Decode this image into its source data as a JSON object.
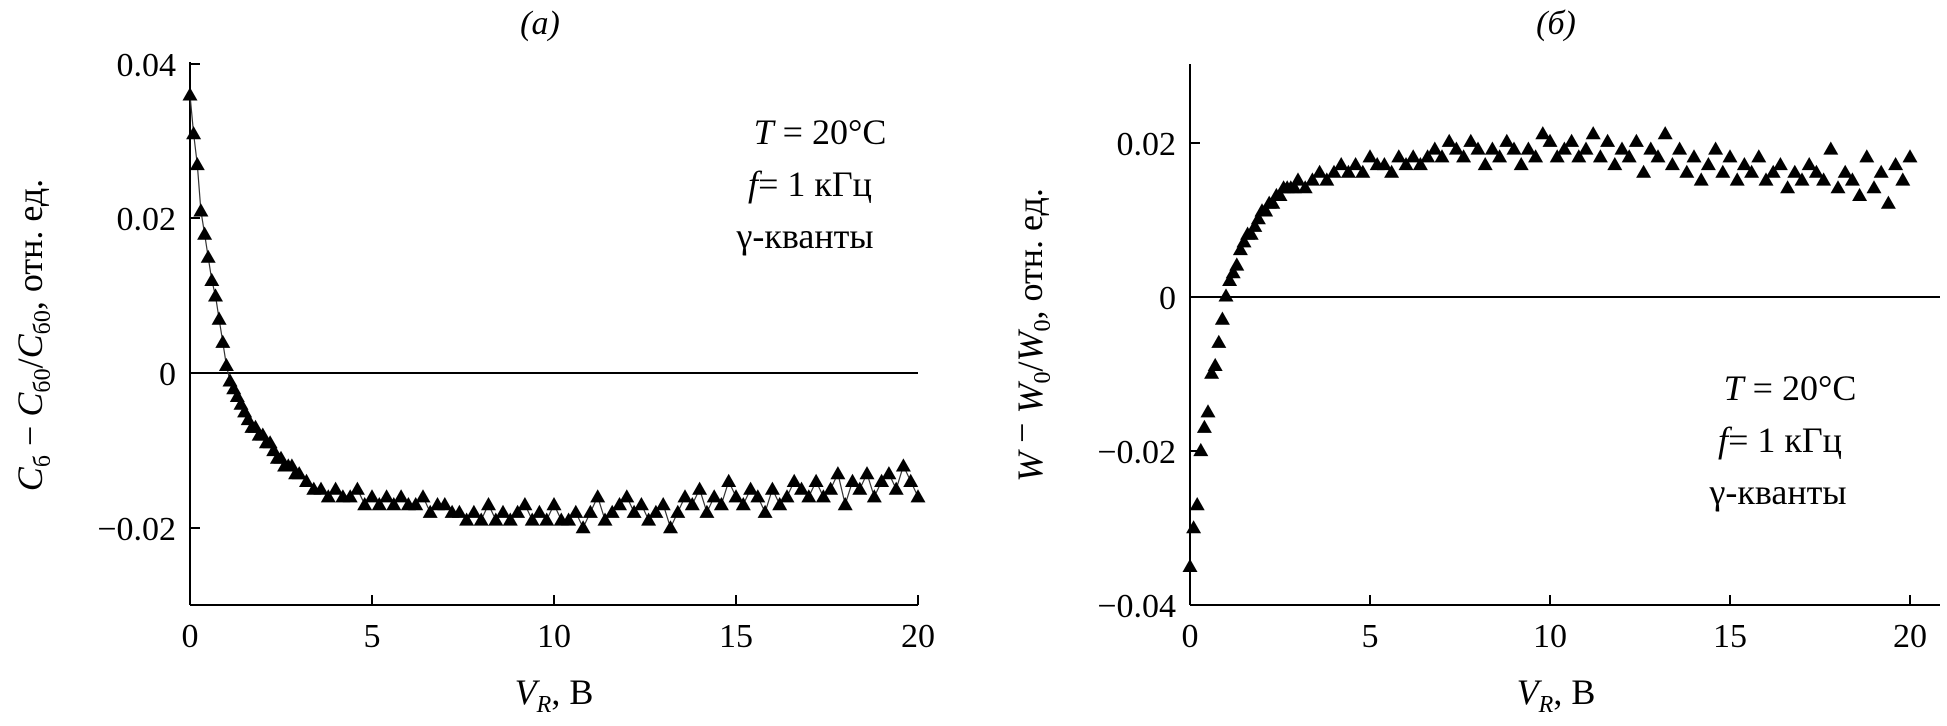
{
  "chart_data": [
    {
      "type": "scatter",
      "title": "(а)",
      "xlabel": "V",
      "xlabel_sub": "R",
      "xlabel_unit": ", В",
      "ylabel_parts": [
        "C",
        "б",
        " − ",
        "C",
        "б0",
        "/",
        "C",
        "б0",
        ", отн. ед."
      ],
      "xlim": [
        0,
        20
      ],
      "ylim": [
        -0.03,
        0.04
      ],
      "xticks": [
        0,
        5,
        10,
        15,
        20
      ],
      "xtick_labels": [
        "0",
        "5",
        "10",
        "15",
        "20"
      ],
      "yticks": [
        -0.02,
        0,
        0.02,
        0.04
      ],
      "ytick_labels": [
        "−0.02",
        "0",
        "0.02",
        "0.04"
      ],
      "zero_line": true,
      "connected": true,
      "annotation": {
        "T": "T",
        "T_rest": " = 20°C",
        "f": "f",
        "f_rest": "= 1 кГц",
        "gamma": "γ-кванты"
      },
      "series": [
        {
          "name": "C_б − C_б0 / C_б0",
          "x": [
            0.0,
            0.1,
            0.2,
            0.3,
            0.4,
            0.5,
            0.6,
            0.7,
            0.8,
            0.9,
            1.0,
            1.1,
            1.2,
            1.3,
            1.4,
            1.5,
            1.6,
            1.7,
            1.8,
            1.9,
            2.0,
            2.1,
            2.2,
            2.3,
            2.4,
            2.5,
            2.6,
            2.7,
            2.8,
            2.9,
            3.0,
            3.2,
            3.4,
            3.6,
            3.8,
            4.0,
            4.2,
            4.4,
            4.6,
            4.8,
            5.0,
            5.2,
            5.4,
            5.6,
            5.8,
            6.0,
            6.2,
            6.4,
            6.6,
            6.8,
            7.0,
            7.2,
            7.4,
            7.6,
            7.8,
            8.0,
            8.2,
            8.4,
            8.6,
            8.8,
            9.0,
            9.2,
            9.4,
            9.6,
            9.8,
            10.0,
            10.2,
            10.4,
            10.6,
            10.8,
            11.0,
            11.2,
            11.4,
            11.6,
            11.8,
            12.0,
            12.2,
            12.4,
            12.6,
            12.8,
            13.0,
            13.2,
            13.4,
            13.6,
            13.8,
            14.0,
            14.2,
            14.4,
            14.6,
            14.8,
            15.0,
            15.2,
            15.4,
            15.6,
            15.8,
            16.0,
            16.2,
            16.4,
            16.6,
            16.8,
            17.0,
            17.2,
            17.4,
            17.6,
            17.8,
            18.0,
            18.2,
            18.4,
            18.6,
            18.8,
            19.0,
            19.2,
            19.4,
            19.6,
            19.8,
            20.0
          ],
          "y": [
            0.036,
            0.031,
            0.027,
            0.021,
            0.018,
            0.015,
            0.012,
            0.01,
            0.007,
            0.004,
            0.001,
            -0.001,
            -0.002,
            -0.003,
            -0.004,
            -0.005,
            -0.006,
            -0.007,
            -0.007,
            -0.008,
            -0.008,
            -0.009,
            -0.009,
            -0.01,
            -0.011,
            -0.011,
            -0.012,
            -0.012,
            -0.012,
            -0.013,
            -0.013,
            -0.014,
            -0.015,
            -0.015,
            -0.016,
            -0.015,
            -0.016,
            -0.016,
            -0.015,
            -0.017,
            -0.016,
            -0.017,
            -0.016,
            -0.017,
            -0.016,
            -0.017,
            -0.017,
            -0.016,
            -0.018,
            -0.017,
            -0.017,
            -0.018,
            -0.018,
            -0.019,
            -0.018,
            -0.019,
            -0.017,
            -0.019,
            -0.018,
            -0.019,
            -0.018,
            -0.017,
            -0.019,
            -0.018,
            -0.019,
            -0.017,
            -0.019,
            -0.019,
            -0.018,
            -0.02,
            -0.018,
            -0.016,
            -0.019,
            -0.018,
            -0.017,
            -0.016,
            -0.018,
            -0.017,
            -0.019,
            -0.018,
            -0.017,
            -0.02,
            -0.018,
            -0.016,
            -0.017,
            -0.015,
            -0.018,
            -0.016,
            -0.017,
            -0.014,
            -0.016,
            -0.017,
            -0.015,
            -0.016,
            -0.018,
            -0.015,
            -0.017,
            -0.016,
            -0.014,
            -0.015,
            -0.016,
            -0.014,
            -0.016,
            -0.015,
            -0.013,
            -0.017,
            -0.014,
            -0.015,
            -0.013,
            -0.016,
            -0.014,
            -0.013,
            -0.015,
            -0.012,
            -0.014,
            -0.016
          ]
        }
      ]
    },
    {
      "type": "scatter",
      "title": "(б)",
      "xlabel": "V",
      "xlabel_sub": "R",
      "xlabel_unit": ", В",
      "ylabel_parts": [
        "W",
        "",
        " − ",
        "W",
        "0",
        "/",
        "W",
        "0",
        ", отн. ед."
      ],
      "xlim": [
        0,
        20
      ],
      "ylim": [
        -0.04,
        0.03
      ],
      "xticks": [
        0,
        5,
        10,
        15,
        20
      ],
      "xtick_labels": [
        "0",
        "5",
        "10",
        "15",
        "20"
      ],
      "yticks": [
        -0.04,
        -0.02,
        0,
        0.02
      ],
      "ytick_labels": [
        "−0.04",
        "−0.02",
        "0",
        "0.02"
      ],
      "zero_line": true,
      "connected": false,
      "annotation": {
        "T": "T",
        "T_rest": " = 20°C",
        "f": "f",
        "f_rest": "= 1 кГц",
        "gamma": "γ-кванты"
      },
      "series": [
        {
          "name": "W − W0 / W0",
          "x": [
            0.0,
            0.1,
            0.2,
            0.3,
            0.4,
            0.5,
            0.6,
            0.7,
            0.8,
            0.9,
            1.0,
            1.1,
            1.2,
            1.3,
            1.4,
            1.5,
            1.6,
            1.7,
            1.8,
            1.9,
            2.0,
            2.1,
            2.2,
            2.3,
            2.4,
            2.5,
            2.6,
            2.7,
            2.8,
            2.9,
            3.0,
            3.2,
            3.4,
            3.6,
            3.8,
            4.0,
            4.2,
            4.4,
            4.6,
            4.8,
            5.0,
            5.2,
            5.4,
            5.6,
            5.8,
            6.0,
            6.2,
            6.4,
            6.6,
            6.8,
            7.0,
            7.2,
            7.4,
            7.6,
            7.8,
            8.0,
            8.2,
            8.4,
            8.6,
            8.8,
            9.0,
            9.2,
            9.4,
            9.6,
            9.8,
            10.0,
            10.2,
            10.4,
            10.6,
            10.8,
            11.0,
            11.2,
            11.4,
            11.6,
            11.8,
            12.0,
            12.2,
            12.4,
            12.6,
            12.8,
            13.0,
            13.2,
            13.4,
            13.6,
            13.8,
            14.0,
            14.2,
            14.4,
            14.6,
            14.8,
            15.0,
            15.2,
            15.4,
            15.6,
            15.8,
            16.0,
            16.2,
            16.4,
            16.6,
            16.8,
            17.0,
            17.2,
            17.4,
            17.6,
            17.8,
            18.0,
            18.2,
            18.4,
            18.6,
            18.8,
            19.0,
            19.2,
            19.4,
            19.6,
            19.8,
            20.0
          ],
          "y": [
            -0.035,
            -0.03,
            -0.027,
            -0.02,
            -0.017,
            -0.015,
            -0.01,
            -0.009,
            -0.006,
            -0.003,
            0.0,
            0.002,
            0.003,
            0.004,
            0.006,
            0.007,
            0.008,
            0.008,
            0.009,
            0.01,
            0.011,
            0.011,
            0.012,
            0.012,
            0.013,
            0.013,
            0.014,
            0.014,
            0.014,
            0.014,
            0.015,
            0.014,
            0.015,
            0.016,
            0.015,
            0.016,
            0.017,
            0.016,
            0.017,
            0.016,
            0.018,
            0.017,
            0.017,
            0.016,
            0.018,
            0.017,
            0.018,
            0.017,
            0.018,
            0.019,
            0.018,
            0.02,
            0.019,
            0.018,
            0.02,
            0.019,
            0.017,
            0.019,
            0.018,
            0.02,
            0.019,
            0.017,
            0.019,
            0.018,
            0.021,
            0.02,
            0.018,
            0.019,
            0.02,
            0.018,
            0.019,
            0.021,
            0.018,
            0.02,
            0.017,
            0.019,
            0.018,
            0.02,
            0.016,
            0.019,
            0.018,
            0.021,
            0.017,
            0.019,
            0.016,
            0.018,
            0.015,
            0.017,
            0.019,
            0.016,
            0.018,
            0.015,
            0.017,
            0.016,
            0.018,
            0.015,
            0.016,
            0.017,
            0.014,
            0.016,
            0.015,
            0.017,
            0.016,
            0.015,
            0.019,
            0.014,
            0.016,
            0.015,
            0.013,
            0.018,
            0.014,
            0.016,
            0.012,
            0.017,
            0.015,
            0.018
          ]
        }
      ]
    }
  ]
}
